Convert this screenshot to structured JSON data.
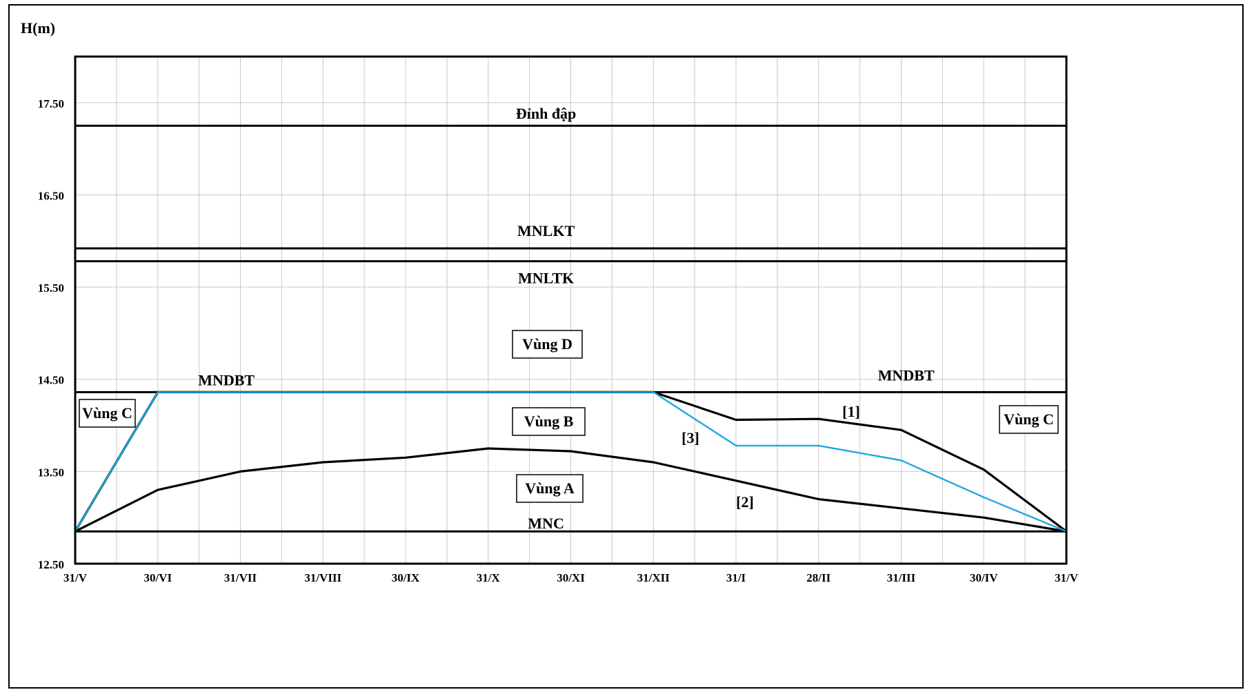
{
  "chart_data": {
    "type": "line",
    "ylabel": "H(m)",
    "xlabel": "",
    "x_labels": [
      "31/V",
      "30/VI",
      "31/VII",
      "31/VIII",
      "30/IX",
      "31/X",
      "30/XI",
      "31/XII",
      "31/I",
      "28/II",
      "31/III",
      "30/IV",
      "31/V"
    ],
    "ylim": [
      12.5,
      18.0
    ],
    "y_ticks": [
      12.5,
      13.5,
      14.5,
      15.5,
      16.5,
      17.5
    ],
    "y_tick_labels": [
      "12.50",
      "13.50",
      "14.50",
      "15.50",
      "16.50",
      "17.50"
    ],
    "grid": true,
    "levels": [
      {
        "name": "Đỉnh đập",
        "value": 17.25
      },
      {
        "name": "MNLKT",
        "value": 15.92
      },
      {
        "name": "MNLTK",
        "value": 15.78
      },
      {
        "name": "MNC",
        "value": 12.85
      }
    ],
    "mndbt_value": 14.36,
    "mndbt_labels": [
      "MNDBT",
      "MNDBT"
    ],
    "series": [
      {
        "name": "[1]",
        "color": "#000000",
        "values": [
          12.85,
          14.36,
          14.36,
          14.36,
          14.36,
          14.36,
          14.36,
          14.36,
          14.06,
          14.07,
          13.95,
          13.52,
          12.85
        ]
      },
      {
        "name": "[2]",
        "color": "#000000",
        "values": [
          12.85,
          13.3,
          13.5,
          13.6,
          13.65,
          13.75,
          13.72,
          13.6,
          13.4,
          13.2,
          13.1,
          13.0,
          12.85
        ]
      },
      {
        "name": "[3]",
        "color": "#1ba8df",
        "values": [
          12.85,
          14.36,
          14.36,
          14.36,
          14.36,
          14.36,
          14.36,
          14.36,
          13.78,
          13.78,
          13.62,
          13.22,
          12.85
        ]
      }
    ],
    "zones": [
      "Vùng D",
      "Vùng B",
      "Vùng A",
      "Vùng C",
      "Vùng C"
    ]
  }
}
